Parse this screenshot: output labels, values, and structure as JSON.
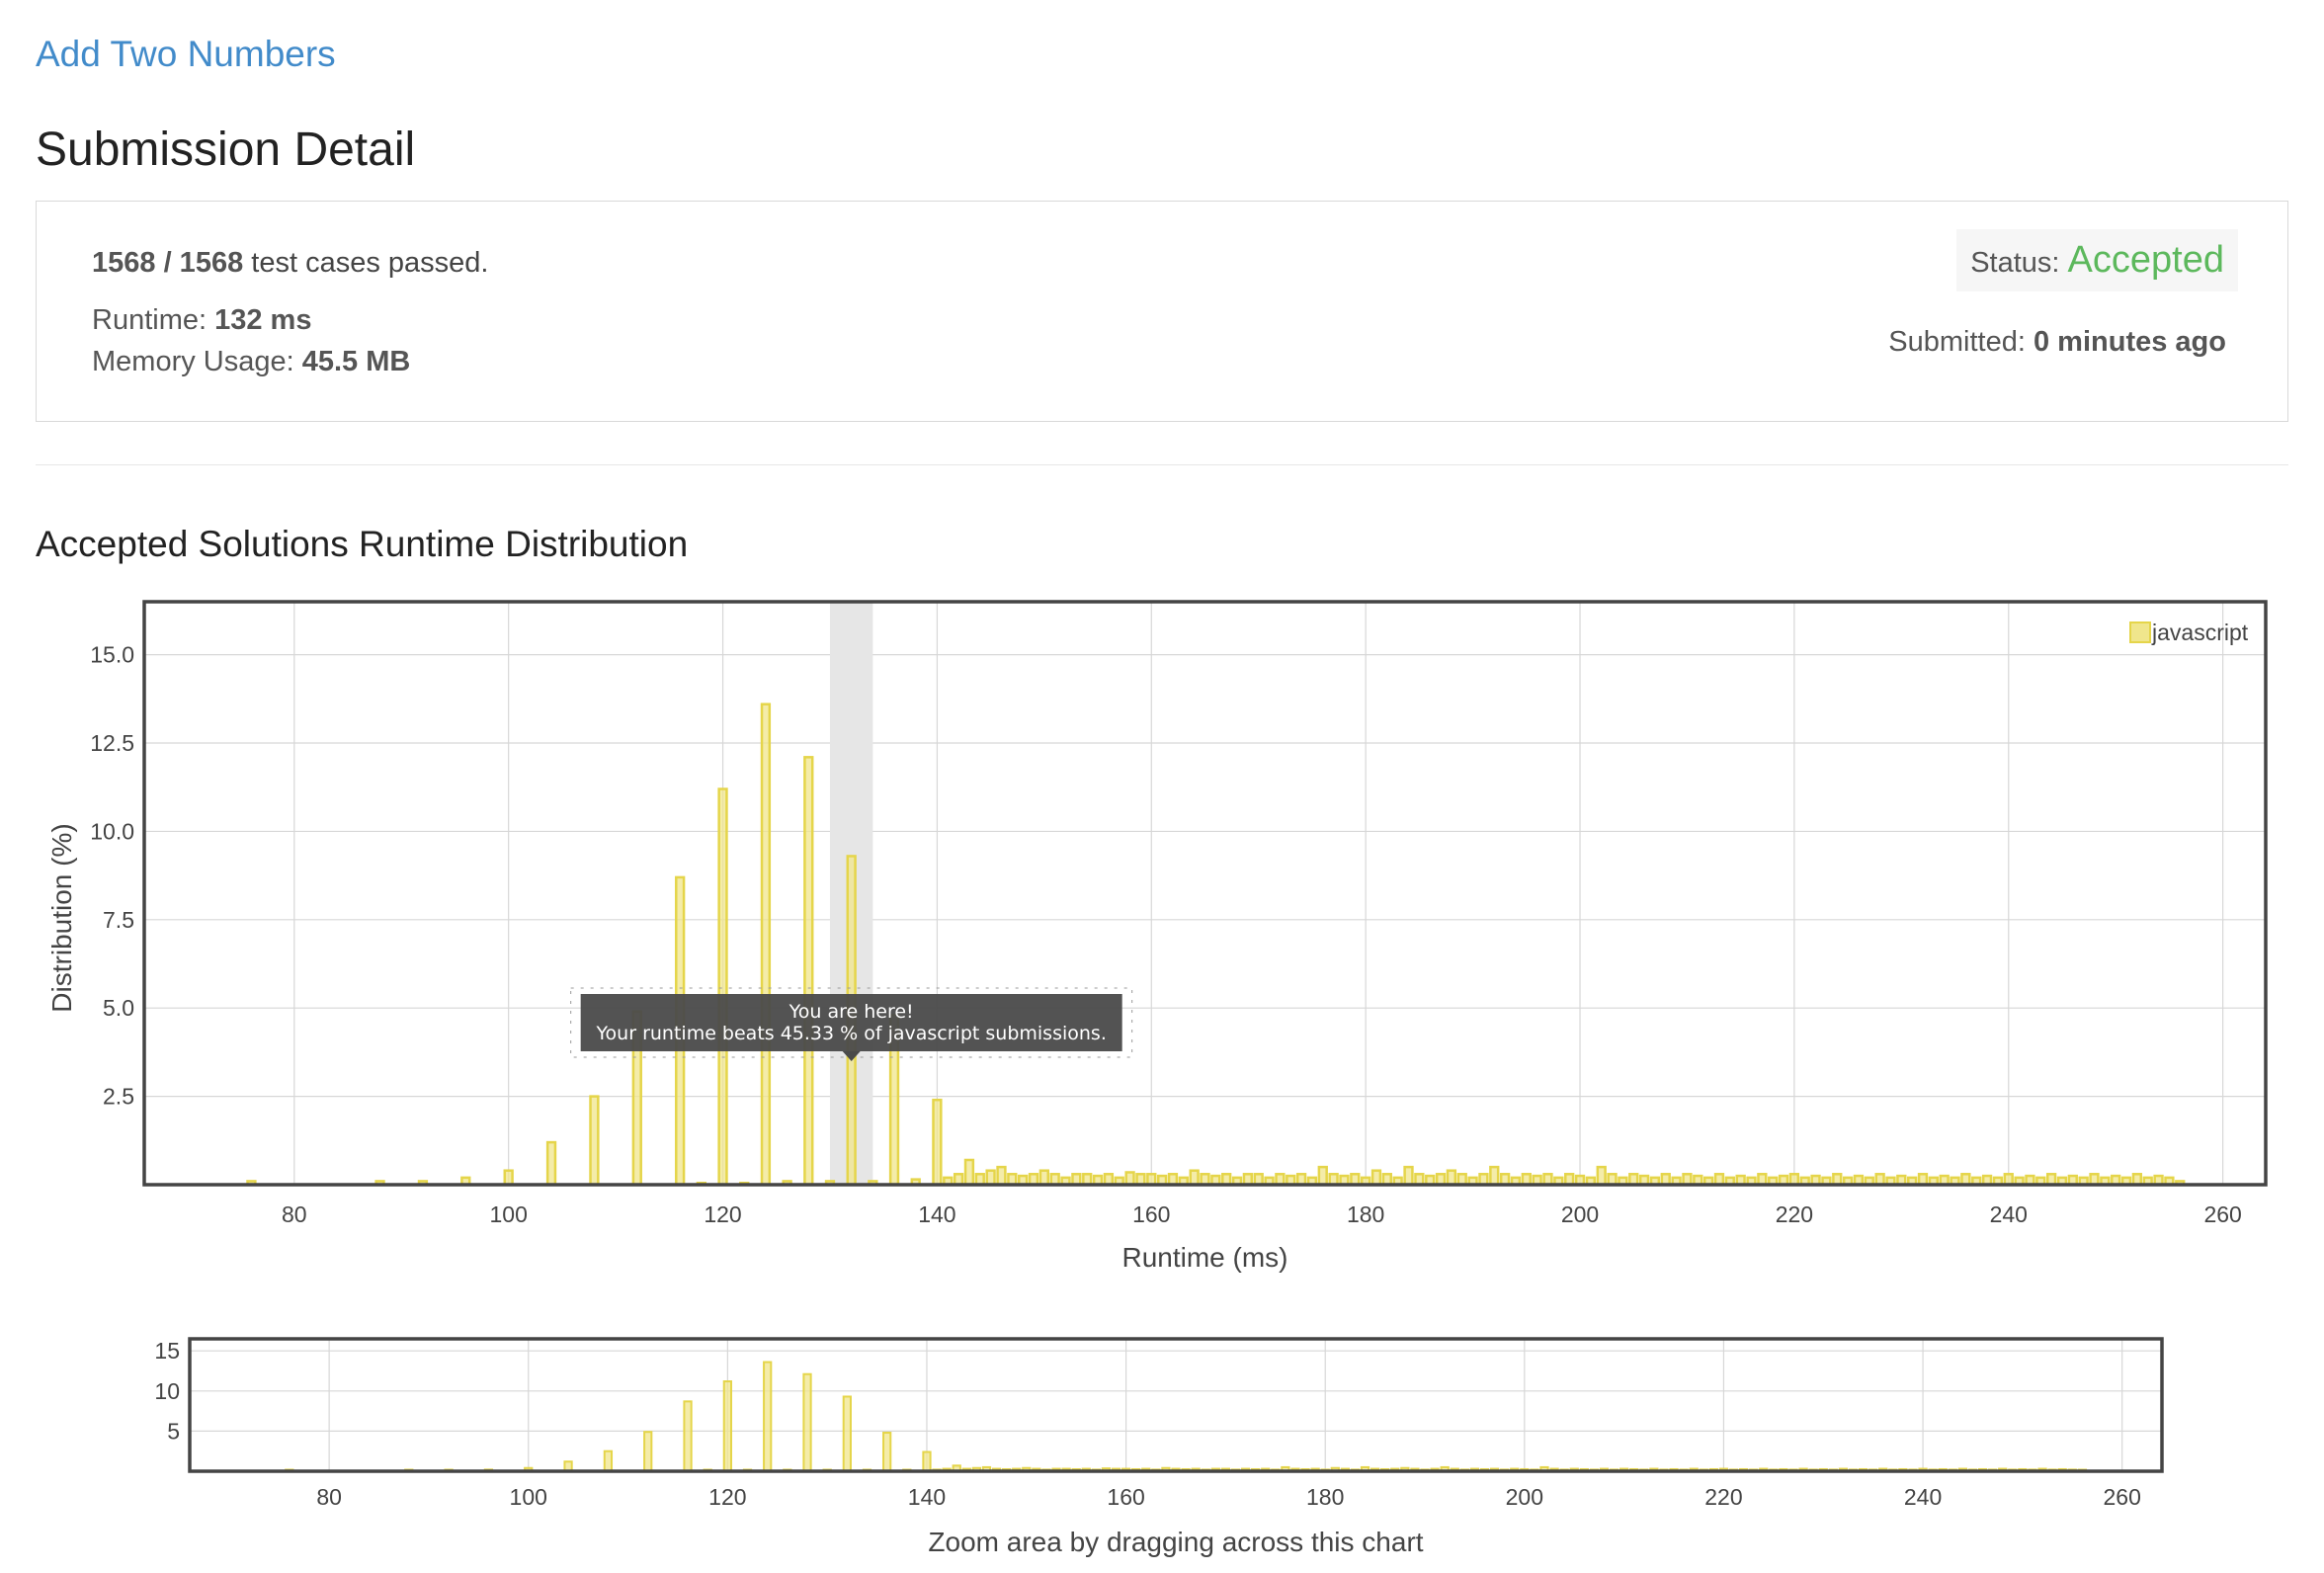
{
  "problem": {
    "title": "Add Two Numbers"
  },
  "page": {
    "title": "Submission Detail"
  },
  "summary": {
    "cases_count": "1568 / 1568",
    "cases_suffix": "test cases passed.",
    "runtime_label": "Runtime:",
    "runtime_value": "132 ms",
    "memory_label": "Memory Usage:",
    "memory_value": "45.5 MB",
    "status_label": "Status:",
    "status_value": "Accepted",
    "submitted_label": "Submitted:",
    "submitted_value": "0 minutes ago"
  },
  "colors": {
    "link": "#428bca",
    "accepted": "#5cb85c",
    "bar_fill": "#f0e68c",
    "bar_stroke": "#e5d54a",
    "highlight": "#e6e6e6",
    "tooltip_bg": "#4a4a4a"
  },
  "chart_section": {
    "title": "Accepted Solutions Runtime Distribution"
  },
  "tooltip": {
    "line1": "You are here!",
    "line2": "Your runtime beats 45.33 % of javascript submissions."
  },
  "chart_data": [
    {
      "type": "bar",
      "xlabel": "Runtime (ms)",
      "ylabel": "Distribution (%)",
      "xlim": [
        66,
        264
      ],
      "ylim": [
        0,
        16.5
      ],
      "xticks": [
        80,
        100,
        120,
        140,
        160,
        180,
        200,
        220,
        240,
        260
      ],
      "yticks": [
        2.5,
        5.0,
        7.5,
        10.0,
        12.5,
        15.0
      ],
      "ytick_labels": [
        "2.5",
        "5.0",
        "7.5",
        "10.0",
        "12.5",
        "15.0"
      ],
      "grid": true,
      "legend_position": "top-right",
      "highlight_x": 132,
      "series": [
        {
          "name": "javascript",
          "x": [
            76,
            88,
            92,
            96,
            100,
            104,
            108,
            112,
            116,
            118,
            120,
            122,
            124,
            126,
            128,
            130,
            132,
            134,
            136,
            138,
            140,
            141,
            142,
            143,
            144,
            145,
            146,
            147,
            148,
            149,
            150,
            151,
            152,
            153,
            154,
            155,
            156,
            157,
            158,
            159,
            160,
            161,
            162,
            163,
            164,
            165,
            166,
            167,
            168,
            169,
            170,
            171,
            172,
            173,
            174,
            175,
            176,
            177,
            178,
            179,
            180,
            181,
            182,
            183,
            184,
            185,
            186,
            187,
            188,
            189,
            190,
            191,
            192,
            193,
            194,
            195,
            196,
            197,
            198,
            199,
            200,
            201,
            202,
            203,
            204,
            205,
            206,
            207,
            208,
            209,
            210,
            211,
            212,
            213,
            214,
            215,
            216,
            217,
            218,
            219,
            220,
            221,
            222,
            223,
            224,
            225,
            226,
            227,
            228,
            229,
            230,
            231,
            232,
            233,
            234,
            235,
            236,
            237,
            238,
            239,
            240,
            241,
            242,
            243,
            244,
            245,
            246,
            247,
            248,
            249,
            250,
            251,
            252,
            253,
            254,
            255,
            256
          ],
          "values": [
            0.1,
            0.1,
            0.1,
            0.2,
            0.4,
            1.2,
            2.5,
            4.9,
            8.7,
            0.05,
            11.2,
            0.05,
            13.6,
            0.1,
            12.1,
            0.1,
            9.3,
            0.1,
            4.8,
            0.15,
            2.4,
            0.2,
            0.3,
            0.7,
            0.3,
            0.4,
            0.5,
            0.3,
            0.25,
            0.3,
            0.4,
            0.3,
            0.2,
            0.3,
            0.3,
            0.25,
            0.3,
            0.2,
            0.35,
            0.3,
            0.3,
            0.25,
            0.3,
            0.2,
            0.4,
            0.3,
            0.25,
            0.3,
            0.2,
            0.3,
            0.3,
            0.2,
            0.3,
            0.25,
            0.3,
            0.2,
            0.5,
            0.3,
            0.25,
            0.3,
            0.2,
            0.4,
            0.3,
            0.2,
            0.5,
            0.3,
            0.25,
            0.3,
            0.4,
            0.3,
            0.2,
            0.3,
            0.5,
            0.3,
            0.2,
            0.3,
            0.25,
            0.3,
            0.2,
            0.3,
            0.25,
            0.2,
            0.5,
            0.3,
            0.2,
            0.3,
            0.25,
            0.2,
            0.3,
            0.2,
            0.3,
            0.25,
            0.2,
            0.3,
            0.2,
            0.25,
            0.2,
            0.3,
            0.2,
            0.25,
            0.3,
            0.2,
            0.25,
            0.2,
            0.3,
            0.2,
            0.25,
            0.2,
            0.3,
            0.2,
            0.25,
            0.2,
            0.3,
            0.2,
            0.25,
            0.2,
            0.3,
            0.2,
            0.25,
            0.2,
            0.3,
            0.2,
            0.25,
            0.2,
            0.3,
            0.2,
            0.25,
            0.2,
            0.3,
            0.2,
            0.25,
            0.2,
            0.3,
            0.2,
            0.25,
            0.2,
            0.1
          ]
        }
      ]
    },
    {
      "type": "bar",
      "role": "navigator",
      "xlabel": "Zoom area by dragging across this chart",
      "xlim": [
        66,
        264
      ],
      "ylim": [
        0,
        16.5
      ],
      "xticks": [
        80,
        100,
        120,
        140,
        160,
        180,
        200,
        220,
        240,
        260
      ],
      "yticks": [
        5,
        10,
        15
      ],
      "ytick_labels": [
        "5",
        "10",
        "15"
      ],
      "grid": true,
      "series_ref": "javascript"
    }
  ]
}
